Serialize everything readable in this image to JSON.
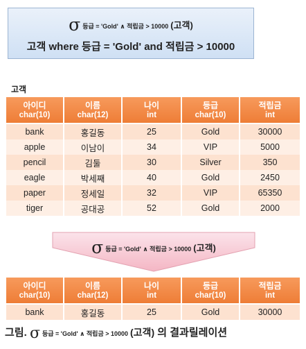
{
  "expression": {
    "sigma": "σ",
    "condition": "등급 = 'Gold' ∧ 적립금 > 10000",
    "relation": "(고객)",
    "sql": "고객 where 등급 = 'Gold'  and  적립금 > 10000"
  },
  "source_table": {
    "name": "고객",
    "columns": [
      {
        "name": "아이디",
        "type": "char(10)"
      },
      {
        "name": "이름",
        "type": "char(12)"
      },
      {
        "name": "나이",
        "type": "int"
      },
      {
        "name": "등급",
        "type": "char(10)"
      },
      {
        "name": "적립금",
        "type": "int"
      }
    ],
    "rows": [
      [
        "bank",
        "홍길동",
        "25",
        "Gold",
        "30000"
      ],
      [
        "apple",
        "이남이",
        "34",
        "VIP",
        "5000"
      ],
      [
        "pencil",
        "김둘",
        "30",
        "Silver",
        "350"
      ],
      [
        "eagle",
        "박세째",
        "40",
        "Gold",
        "2450"
      ],
      [
        "paper",
        "정세일",
        "32",
        "VIP",
        "65350"
      ],
      [
        "tiger",
        "공대공",
        "52",
        "Gold",
        "2000"
      ]
    ]
  },
  "result_table": {
    "rows": [
      [
        "bank",
        "홍길동",
        "25",
        "Gold",
        "30000"
      ]
    ]
  },
  "caption": {
    "prefix": "그림.",
    "suffix": "의 결과릴레이션"
  },
  "colors": {
    "header": "#ee7d36",
    "row_odd": "#fde2d0",
    "row_even": "#feefe5",
    "top_box": "#cfe0f4",
    "arrow": "#f4b6c4"
  }
}
